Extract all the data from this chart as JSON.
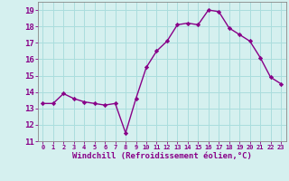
{
  "x": [
    0,
    1,
    2,
    3,
    4,
    5,
    6,
    7,
    8,
    9,
    10,
    11,
    12,
    13,
    14,
    15,
    16,
    17,
    18,
    19,
    20,
    21,
    22,
    23
  ],
  "y": [
    13.3,
    13.3,
    13.9,
    13.6,
    13.4,
    13.3,
    13.2,
    13.3,
    11.5,
    13.6,
    15.5,
    16.5,
    17.1,
    18.1,
    18.2,
    18.1,
    19.0,
    18.9,
    17.9,
    17.5,
    17.1,
    16.1,
    14.9,
    14.5
  ],
  "line_color": "#880088",
  "marker": "D",
  "marker_size": 2.2,
  "bg_color": "#d5f0ef",
  "grid_color": "#aadddd",
  "xlabel": "Windchill (Refroidissement éolien,°C)",
  "ylim": [
    11,
    19.5
  ],
  "yticks": [
    11,
    12,
    13,
    14,
    15,
    16,
    17,
    18,
    19
  ],
  "xticks": [
    0,
    1,
    2,
    3,
    4,
    5,
    6,
    7,
    8,
    9,
    10,
    11,
    12,
    13,
    14,
    15,
    16,
    17,
    18,
    19,
    20,
    21,
    22,
    23
  ],
  "xlabel_fontsize": 6.5,
  "ytick_fontsize": 6.5,
  "xtick_fontsize": 5.0,
  "line_width": 1.0,
  "tick_color": "#880088",
  "label_color": "#880088",
  "spine_color": "#888888"
}
